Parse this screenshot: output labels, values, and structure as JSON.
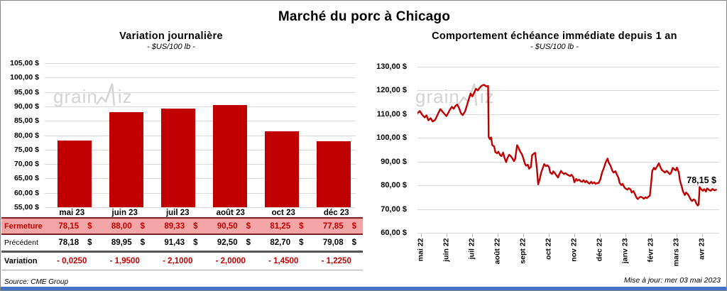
{
  "page": {
    "title": "Marché du porc à Chicago",
    "source": "Source: CME Group",
    "updated": "Mise à jour: mer 03 mai 2023",
    "watermark": {
      "prefix": "grain",
      "suffix": "iz",
      "color": "#c9c9c9"
    }
  },
  "colors": {
    "series_red": "#C00000",
    "close_row_pink": "#F4A6A6",
    "close_row_border": "#7A1F1F",
    "grid": "#D9D9D9",
    "bottom_bar_blue": "#4472C4",
    "variation_red": "#C00000"
  },
  "table": {
    "col_headers": [
      "mai 23",
      "juin 23",
      "juil 23",
      "août 23",
      "oct 23",
      "déc 23"
    ],
    "rows": [
      {
        "kind": "close",
        "label": "Fermeture",
        "values": [
          "78,15 $",
          "88,00 $",
          "89,33 $",
          "90,50 $",
          "81,25 $",
          "77,85 $"
        ]
      },
      {
        "kind": "prev",
        "label": "Précédent",
        "values": [
          "78,18 $",
          "89,95 $",
          "91,43 $",
          "92,50 $",
          "82,70 $",
          "79,08 $"
        ]
      },
      {
        "kind": "var",
        "label": "Variation",
        "values": [
          "- 0,0250",
          "- 1,9500",
          "- 2,1000",
          "- 2,0000",
          "- 1,4500",
          "- 1,2250"
        ]
      }
    ]
  },
  "chart_data": [
    {
      "type": "bar",
      "title": "Variation  journalière",
      "subtitle": "- $US/100 lb -",
      "categories": [
        "mai 23",
        "juin 23",
        "juil 23",
        "août 23",
        "oct 23",
        "déc 23"
      ],
      "values": [
        78.15,
        88.0,
        89.33,
        90.5,
        81.25,
        77.85
      ],
      "ylabel": "$US/100 lb",
      "ylim": [
        55,
        105
      ],
      "ytick_step": 5,
      "ytick_labels": [
        "105,00 $",
        "100,00 $",
        "95,00 $",
        "90,00 $",
        "85,00 $",
        "80,00 $",
        "75,00 $",
        "70,00 $",
        "65,00 $",
        "60,00 $",
        "55,00 $"
      ],
      "grid": true,
      "legend": "none",
      "bar_color": "#C00000"
    },
    {
      "type": "line",
      "title": "Comportement  échéance immédiate depuis 1 an",
      "subtitle": "- $US/100 lb -",
      "ylabel": "$US/100 lb",
      "ylim": [
        60,
        130
      ],
      "ytick_step": 10,
      "ytick_labels": [
        "130,00 $",
        "120,00 $",
        "110,00 $",
        "100,00 $",
        "90,00 $",
        "80,00 $",
        "70,00 $",
        "60,00 $"
      ],
      "x_labels": [
        "mai 22",
        "juin 22",
        "juil 22",
        "août 22",
        "sept 22",
        "oct 22",
        "nov 22",
        "déc 22",
        "janv 23",
        "févr 23",
        "mars 23",
        "avr 23"
      ],
      "grid": true,
      "legend": "none",
      "line_color": "#C00000",
      "annotation": {
        "text": "78,15 $",
        "value": 78.15
      },
      "last_value": 78.15,
      "points": [
        [
          0.0,
          110.4
        ],
        [
          0.008,
          111.3
        ],
        [
          0.016,
          109.7
        ],
        [
          0.024,
          108.6
        ],
        [
          0.03,
          109.5
        ],
        [
          0.036,
          107.4
        ],
        [
          0.044,
          108.3
        ],
        [
          0.05,
          106.9
        ],
        [
          0.058,
          107.5
        ],
        [
          0.064,
          109.0
        ],
        [
          0.07,
          110.7
        ],
        [
          0.076,
          112.1
        ],
        [
          0.082,
          111.2
        ],
        [
          0.09,
          110.0
        ],
        [
          0.096,
          109.2
        ],
        [
          0.102,
          110.5
        ],
        [
          0.108,
          112.0
        ],
        [
          0.114,
          113.1
        ],
        [
          0.12,
          112.3
        ],
        [
          0.126,
          113.5
        ],
        [
          0.132,
          114.1
        ],
        [
          0.138,
          112.5
        ],
        [
          0.144,
          110.4
        ],
        [
          0.15,
          109.6
        ],
        [
          0.158,
          111.3
        ],
        [
          0.164,
          113.7
        ],
        [
          0.17,
          116.3
        ],
        [
          0.176,
          118.7
        ],
        [
          0.182,
          117.5
        ],
        [
          0.188,
          119.1
        ],
        [
          0.194,
          120.7
        ],
        [
          0.2,
          120.0
        ],
        [
          0.206,
          121.1
        ],
        [
          0.212,
          121.9
        ],
        [
          0.22,
          122.4
        ],
        [
          0.228,
          121.7
        ],
        [
          0.234,
          121.9
        ],
        [
          0.236,
          100.4
        ],
        [
          0.24,
          99.5
        ],
        [
          0.244,
          100.2
        ],
        [
          0.248,
          96.9
        ],
        [
          0.254,
          96.4
        ],
        [
          0.258,
          94.0
        ],
        [
          0.264,
          93.5
        ],
        [
          0.268,
          94.2
        ],
        [
          0.274,
          92.8
        ],
        [
          0.278,
          92.3
        ],
        [
          0.284,
          93.8
        ],
        [
          0.288,
          91.8
        ],
        [
          0.294,
          89.8
        ],
        [
          0.298,
          91.4
        ],
        [
          0.304,
          92.9
        ],
        [
          0.31,
          92.2
        ],
        [
          0.314,
          91.5
        ],
        [
          0.32,
          90.2
        ],
        [
          0.324,
          91.2
        ],
        [
          0.33,
          96.9
        ],
        [
          0.334,
          96.1
        ],
        [
          0.34,
          94.3
        ],
        [
          0.346,
          93.2
        ],
        [
          0.35,
          91.7
        ],
        [
          0.356,
          89.2
        ],
        [
          0.36,
          88.3
        ],
        [
          0.366,
          88.7
        ],
        [
          0.37,
          87.0
        ],
        [
          0.376,
          87.8
        ],
        [
          0.38,
          92.7
        ],
        [
          0.386,
          93.4
        ],
        [
          0.39,
          93.7
        ],
        [
          0.396,
          86.8
        ],
        [
          0.4,
          80.4
        ],
        [
          0.406,
          83.1
        ],
        [
          0.41,
          85.5
        ],
        [
          0.416,
          87.5
        ],
        [
          0.42,
          89.0
        ],
        [
          0.426,
          88.1
        ],
        [
          0.43,
          88.5
        ],
        [
          0.436,
          87.7
        ],
        [
          0.44,
          85.4
        ],
        [
          0.446,
          84.8
        ],
        [
          0.45,
          85.9
        ],
        [
          0.456,
          85.0
        ],
        [
          0.46,
          84.3
        ],
        [
          0.466,
          83.3
        ],
        [
          0.47,
          84.7
        ],
        [
          0.476,
          86.1
        ],
        [
          0.48,
          85.3
        ],
        [
          0.486,
          84.8
        ],
        [
          0.49,
          85.2
        ],
        [
          0.496,
          84.6
        ],
        [
          0.5,
          84.3
        ],
        [
          0.506,
          83.9
        ],
        [
          0.51,
          84.5
        ],
        [
          0.516,
          83.6
        ],
        [
          0.52,
          81.3
        ],
        [
          0.526,
          82.7
        ],
        [
          0.53,
          82.0
        ],
        [
          0.536,
          82.4
        ],
        [
          0.54,
          81.8
        ],
        [
          0.546,
          81.5
        ],
        [
          0.55,
          82.2
        ],
        [
          0.556,
          81.3
        ],
        [
          0.56,
          81.9
        ],
        [
          0.566,
          81.1
        ],
        [
          0.57,
          80.7
        ],
        [
          0.576,
          81.5
        ],
        [
          0.58,
          80.8
        ],
        [
          0.586,
          81.3
        ],
        [
          0.59,
          80.6
        ],
        [
          0.596,
          81.0
        ],
        [
          0.6,
          80.9
        ],
        [
          0.606,
          82.5
        ],
        [
          0.612,
          85.5
        ],
        [
          0.618,
          87.3
        ],
        [
          0.624,
          89.8
        ],
        [
          0.63,
          91.3
        ],
        [
          0.634,
          89.6
        ],
        [
          0.64,
          88.2
        ],
        [
          0.646,
          86.1
        ],
        [
          0.65,
          85.4
        ],
        [
          0.656,
          86.0
        ],
        [
          0.66,
          84.8
        ],
        [
          0.666,
          83.2
        ],
        [
          0.67,
          81.0
        ],
        [
          0.676,
          80.1
        ],
        [
          0.68,
          80.6
        ],
        [
          0.686,
          79.1
        ],
        [
          0.69,
          78.6
        ],
        [
          0.696,
          78.2
        ],
        [
          0.7,
          78.8
        ],
        [
          0.706,
          78.3
        ],
        [
          0.71,
          77.0
        ],
        [
          0.716,
          77.6
        ],
        [
          0.72,
          76.5
        ],
        [
          0.726,
          74.8
        ],
        [
          0.73,
          74.2
        ],
        [
          0.736,
          75.0
        ],
        [
          0.74,
          75.2
        ],
        [
          0.746,
          74.8
        ],
        [
          0.75,
          74.4
        ],
        [
          0.756,
          75.0
        ],
        [
          0.76,
          74.6
        ],
        [
          0.766,
          75.3
        ],
        [
          0.77,
          75.6
        ],
        [
          0.774,
          80.2
        ],
        [
          0.778,
          86.1
        ],
        [
          0.784,
          87.4
        ],
        [
          0.788,
          86.7
        ],
        [
          0.794,
          87.9
        ],
        [
          0.8,
          89.3
        ],
        [
          0.806,
          87.4
        ],
        [
          0.81,
          86.4
        ],
        [
          0.816,
          85.9
        ],
        [
          0.82,
          85.4
        ],
        [
          0.826,
          86.1
        ],
        [
          0.83,
          85.6
        ],
        [
          0.836,
          84.7
        ],
        [
          0.84,
          85.1
        ],
        [
          0.846,
          87.4
        ],
        [
          0.85,
          86.9
        ],
        [
          0.856,
          86.3
        ],
        [
          0.86,
          87.5
        ],
        [
          0.866,
          85.4
        ],
        [
          0.87,
          82.0
        ],
        [
          0.876,
          79.4
        ],
        [
          0.88,
          77.4
        ],
        [
          0.886,
          75.9
        ],
        [
          0.89,
          77.0
        ],
        [
          0.896,
          76.3
        ],
        [
          0.9,
          75.4
        ],
        [
          0.906,
          73.9
        ],
        [
          0.91,
          73.4
        ],
        [
          0.916,
          74.1
        ],
        [
          0.92,
          73.7
        ],
        [
          0.924,
          72.4
        ],
        [
          0.929,
          71.5
        ],
        [
          0.932,
          72.0
        ],
        [
          0.935,
          79.3
        ],
        [
          0.94,
          78.4
        ],
        [
          0.946,
          77.7
        ],
        [
          0.95,
          78.4
        ],
        [
          0.956,
          77.4
        ],
        [
          0.96,
          78.7
        ],
        [
          0.966,
          78.1
        ],
        [
          0.972,
          77.7
        ],
        [
          0.978,
          78.5
        ],
        [
          0.984,
          77.9
        ],
        [
          0.99,
          78.15
        ]
      ]
    }
  ]
}
